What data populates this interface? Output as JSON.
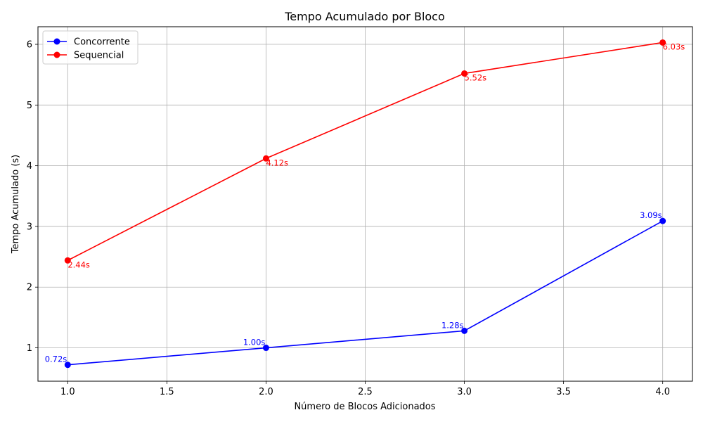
{
  "chart_data": {
    "type": "line",
    "title": "Tempo Acumulado por Bloco",
    "xlabel": "Número de Blocos Adicionados",
    "ylabel": "Tempo Acumulado (s)",
    "xlim": [
      0.85,
      4.15
    ],
    "ylim": [
      0.45,
      6.29
    ],
    "xticks": [
      1.0,
      1.5,
      2.0,
      2.5,
      3.0,
      3.5,
      4.0
    ],
    "xtick_labels": [
      "1.0",
      "1.5",
      "2.0",
      "2.5",
      "3.0",
      "3.5",
      "4.0"
    ],
    "yticks": [
      1,
      2,
      3,
      4,
      5,
      6
    ],
    "ytick_labels": [
      "1",
      "2",
      "3",
      "4",
      "5",
      "6"
    ],
    "grid": true,
    "legend_position": "top-left",
    "series": [
      {
        "name": "Concorrente",
        "color": "#0000ff",
        "x": [
          1,
          2,
          3,
          4
        ],
        "y": [
          0.72,
          1.0,
          1.28,
          3.09
        ],
        "labels": [
          "0.72s",
          "1.00s",
          "1.28s",
          "3.09s"
        ],
        "label_placement": "above-left"
      },
      {
        "name": "Sequencial",
        "color": "#ff0000",
        "x": [
          1,
          2,
          3,
          4
        ],
        "y": [
          2.44,
          4.12,
          5.52,
          6.03
        ],
        "labels": [
          "2.44s",
          "4.12s",
          "5.52s",
          "6.03s"
        ],
        "label_placement": "below-right"
      }
    ]
  }
}
